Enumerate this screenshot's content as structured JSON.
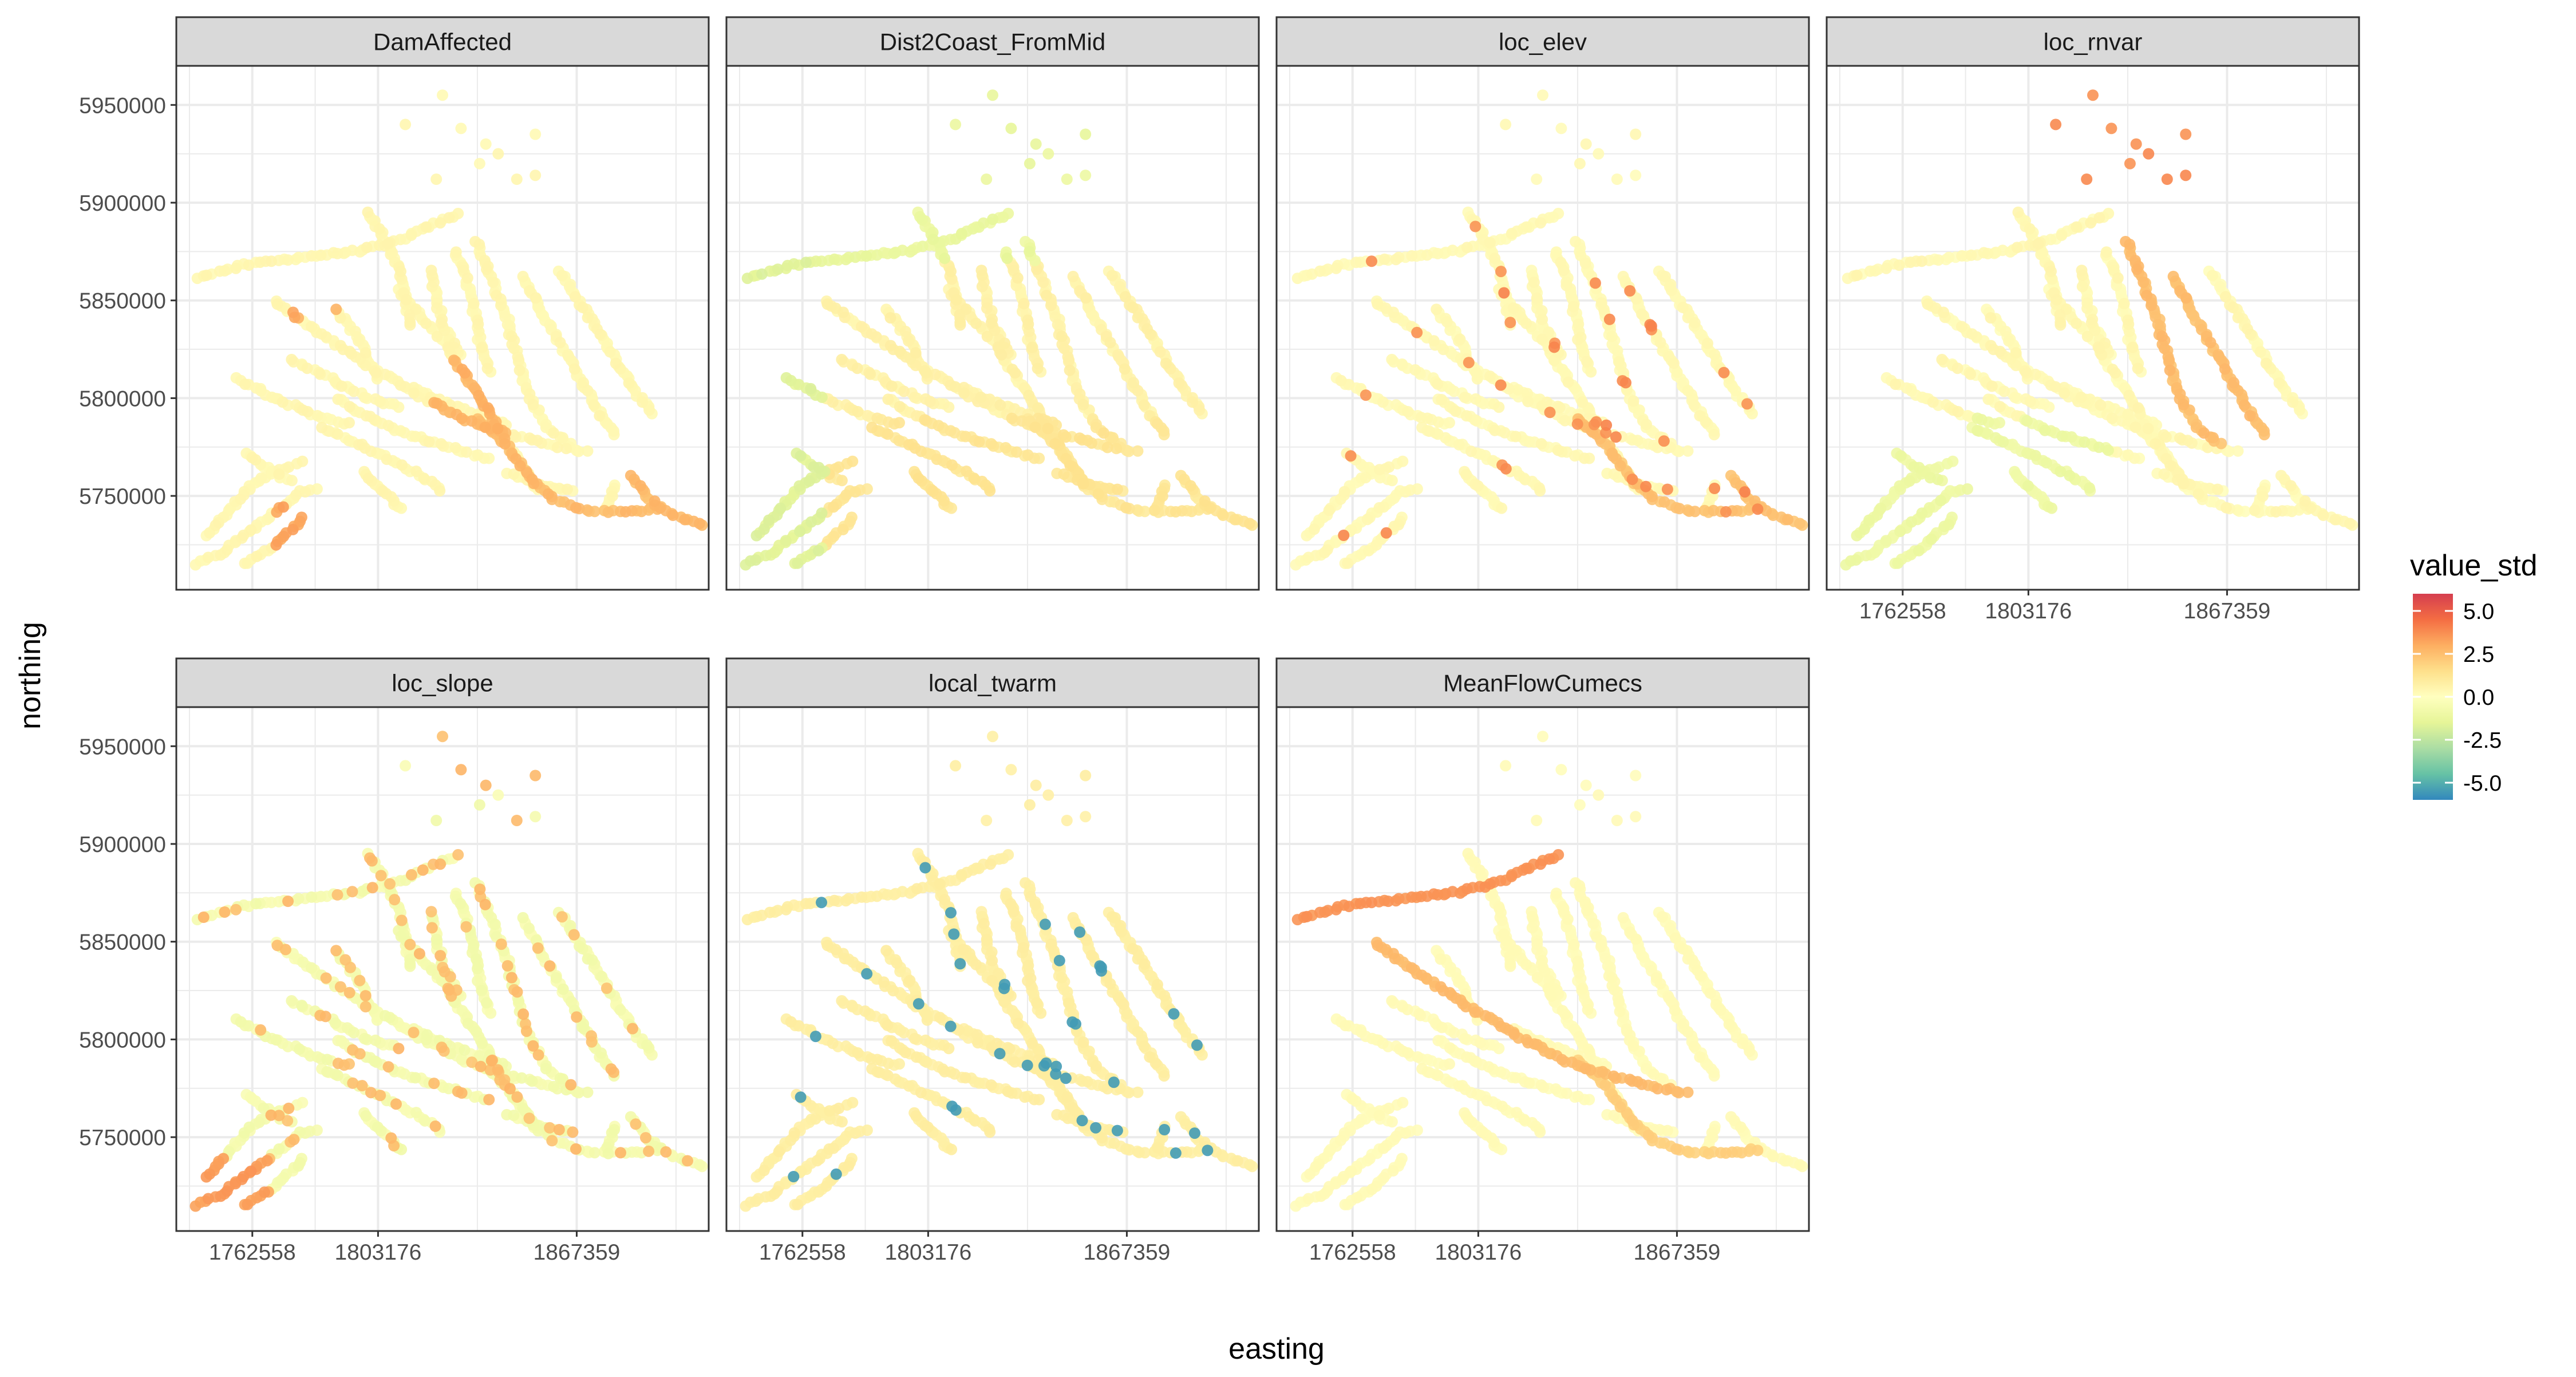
{
  "chart_data": {
    "type": "scatter",
    "facet_by": "variable",
    "facet_layout": "wrap",
    "panels": [
      {
        "label": "DamAffected"
      },
      {
        "label": "Dist2Coast_FromMid"
      },
      {
        "label": "loc_elev"
      },
      {
        "label": "loc_rnvar"
      },
      {
        "label": "loc_slope"
      },
      {
        "label": "local_twarm"
      },
      {
        "label": "MeanFlowCumecs"
      }
    ],
    "xlabel": "easting",
    "ylabel": "northing",
    "x_ticks": [
      1762558,
      1803176,
      1867359
    ],
    "y_ticks": [
      5750000,
      5800000,
      5850000,
      5900000,
      5950000
    ],
    "xlim": [
      1738000,
      1910000
    ],
    "ylim": [
      5702000,
      5970000
    ],
    "grid": true,
    "color_scale": {
      "name": "value_std",
      "palette": "Spectral",
      "limits": [
        -6.0,
        6.0
      ],
      "ticks": [
        "5.0",
        "2.5",
        "0.0",
        "-2.5",
        "-5.0"
      ],
      "tick_values": [
        5.0,
        2.5,
        0.0,
        -2.5,
        -5.0
      ],
      "colors": [
        "#d53e4f",
        "#f46d43",
        "#fdae61",
        "#fee08b",
        "#ffffbf",
        "#e6f598",
        "#abdda4",
        "#66c2a5",
        "#3288bd"
      ]
    },
    "colors": {
      "panel_border": "#333333",
      "strip_fill": "#d9d9d9",
      "grid": "#ebebeb"
    }
  }
}
